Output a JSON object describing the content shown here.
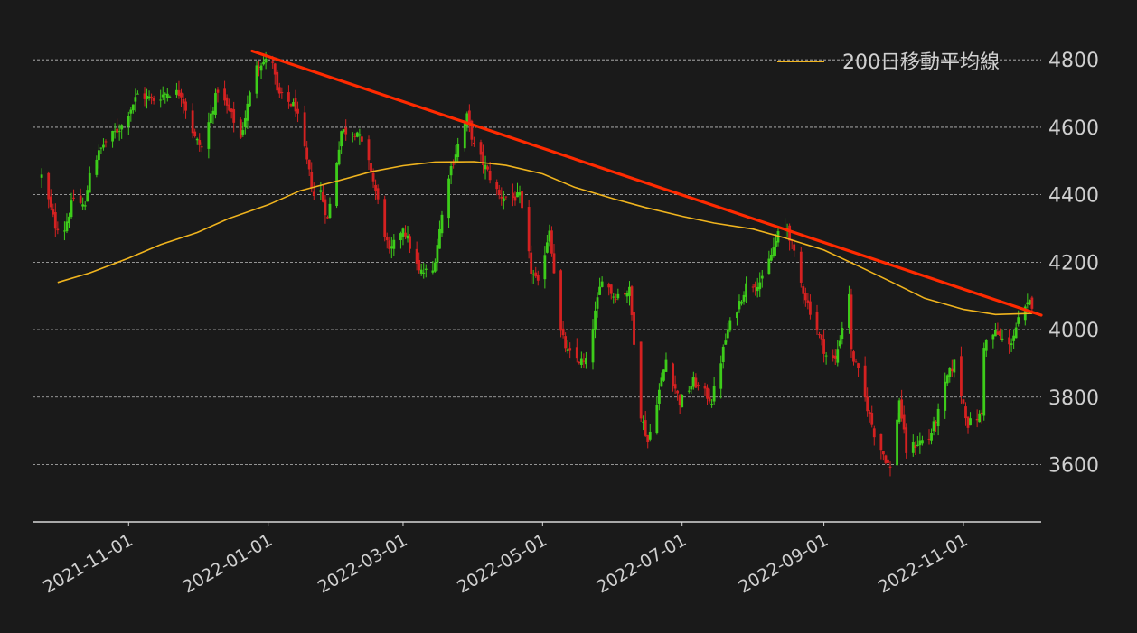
{
  "chart_data": {
    "type": "candlestick",
    "title": "",
    "xlabel": "",
    "ylabel": "",
    "ylim": [
      3430,
      4830
    ],
    "y_ticks": [
      3600,
      3800,
      4000,
      4200,
      4400,
      4600,
      4800
    ],
    "x_range": [
      "2021-09-20",
      "2022-12-05"
    ],
    "x_ticks": [
      "2021-11-01",
      "2022-01-01",
      "2022-03-01",
      "2022-05-01",
      "2022-07-01",
      "2022-09-01",
      "2022-11-01"
    ],
    "grid": {
      "horizontal": true,
      "vertical": false
    },
    "legend": {
      "position": "top-right"
    },
    "colors": {
      "background": "#1a1a1a",
      "up": "#3dcc1a",
      "down": "#d42121",
      "ma": "#f0b41e",
      "trendline": "#ff2a00",
      "text": "#d0d0d0",
      "grid": "#bdbdbd",
      "axis": "#d8d8d8"
    },
    "ohlc_anchor_close": [
      [
        "2021-09-24",
        4455
      ],
      [
        "2021-09-30",
        4308
      ],
      [
        "2021-10-04",
        4300
      ],
      [
        "2021-10-08",
        4391
      ],
      [
        "2021-10-13",
        4363
      ],
      [
        "2021-10-15",
        4471
      ],
      [
        "2021-10-21",
        4549
      ],
      [
        "2021-10-29",
        4605
      ],
      [
        "2021-11-05",
        4697
      ],
      [
        "2021-11-12",
        4682
      ],
      [
        "2021-11-18",
        4704
      ],
      [
        "2021-11-24",
        4701
      ],
      [
        "2021-11-30",
        4567
      ],
      [
        "2021-12-03",
        4538
      ],
      [
        "2021-12-10",
        4712
      ],
      [
        "2021-12-17",
        4620
      ],
      [
        "2021-12-20",
        4568
      ],
      [
        "2021-12-27",
        4791
      ],
      [
        "2022-01-03",
        4796
      ],
      [
        "2022-01-05",
        4700
      ],
      [
        "2022-01-13",
        4659
      ],
      [
        "2022-01-21",
        4398
      ],
      [
        "2022-01-24",
        4410
      ],
      [
        "2022-01-27",
        4326
      ],
      [
        "2022-02-02",
        4589
      ],
      [
        "2022-02-09",
        4587
      ],
      [
        "2022-02-15",
        4471
      ],
      [
        "2022-02-23",
        4225
      ],
      [
        "2022-03-01",
        4306
      ],
      [
        "2022-03-08",
        4170
      ],
      [
        "2022-03-14",
        4173
      ],
      [
        "2022-03-21",
        4461
      ],
      [
        "2022-03-29",
        4631
      ],
      [
        "2022-04-01",
        4545
      ],
      [
        "2022-04-06",
        4481
      ],
      [
        "2022-04-12",
        4397
      ],
      [
        "2022-04-18",
        4391
      ],
      [
        "2022-04-21",
        4393
      ],
      [
        "2022-04-26",
        4175
      ],
      [
        "2022-04-29",
        4131
      ],
      [
        "2022-05-04",
        4300
      ],
      [
        "2022-05-09",
        3991
      ],
      [
        "2022-05-12",
        3930
      ],
      [
        "2022-05-19",
        3900
      ],
      [
        "2022-05-20",
        3901
      ],
      [
        "2022-05-27",
        4158
      ],
      [
        "2022-06-01",
        4101
      ],
      [
        "2022-06-08",
        4115
      ],
      [
        "2022-06-13",
        3750
      ],
      [
        "2022-06-16",
        3667
      ],
      [
        "2022-06-24",
        3911
      ],
      [
        "2022-06-30",
        3785
      ],
      [
        "2022-07-06",
        3845
      ],
      [
        "2022-07-14",
        3790
      ],
      [
        "2022-07-21",
        3999
      ],
      [
        "2022-07-29",
        4130
      ],
      [
        "2022-08-05",
        4145
      ],
      [
        "2022-08-12",
        4280
      ],
      [
        "2022-08-16",
        4305
      ],
      [
        "2022-08-22",
        4137
      ],
      [
        "2022-08-26",
        4057
      ],
      [
        "2022-09-02",
        3924
      ],
      [
        "2022-09-06",
        3908
      ],
      [
        "2022-09-12",
        4110
      ],
      [
        "2022-09-13",
        3932
      ],
      [
        "2022-09-16",
        3873
      ],
      [
        "2022-09-23",
        3693
      ],
      [
        "2022-09-30",
        3586
      ],
      [
        "2022-10-04",
        3791
      ],
      [
        "2022-10-07",
        3640
      ],
      [
        "2022-10-13",
        3669
      ],
      [
        "2022-10-17",
        3678
      ],
      [
        "2022-10-21",
        3752
      ],
      [
        "2022-10-25",
        3860
      ],
      [
        "2022-10-28",
        3901
      ],
      [
        "2022-11-03",
        3720
      ],
      [
        "2022-11-09",
        3749
      ],
      [
        "2022-11-10",
        3956
      ],
      [
        "2022-11-15",
        3991
      ],
      [
        "2022-11-21",
        3950
      ],
      [
        "2022-11-25",
        4026
      ],
      [
        "2022-11-30",
        4080
      ],
      [
        "2022-12-01",
        4076
      ]
    ],
    "series": [
      {
        "name": "200日移動平均線",
        "type": "line",
        "x": [
          "2021-10-01",
          "2021-10-15",
          "2021-11-01",
          "2021-11-15",
          "2021-12-01",
          "2021-12-15",
          "2022-01-01",
          "2022-01-15",
          "2022-02-01",
          "2022-02-15",
          "2022-03-01",
          "2022-03-15",
          "2022-04-01",
          "2022-04-15",
          "2022-05-01",
          "2022-05-15",
          "2022-06-01",
          "2022-06-15",
          "2022-07-01",
          "2022-07-15",
          "2022-08-01",
          "2022-08-15",
          "2022-09-01",
          "2022-09-15",
          "2022-10-01",
          "2022-10-15",
          "2022-11-01",
          "2022-11-15",
          "2022-12-01"
        ],
        "y": [
          4140,
          4168,
          4212,
          4252,
          4288,
          4330,
          4370,
          4412,
          4442,
          4468,
          4486,
          4497,
          4498,
          4487,
          4462,
          4422,
          4388,
          4362,
          4336,
          4316,
          4298,
          4272,
          4236,
          4192,
          4140,
          4093,
          4060,
          4045,
          4048
        ]
      }
    ],
    "trendline": {
      "x": [
        "2021-12-25",
        "2022-12-05"
      ],
      "y": [
        4826,
        4043
      ]
    }
  }
}
